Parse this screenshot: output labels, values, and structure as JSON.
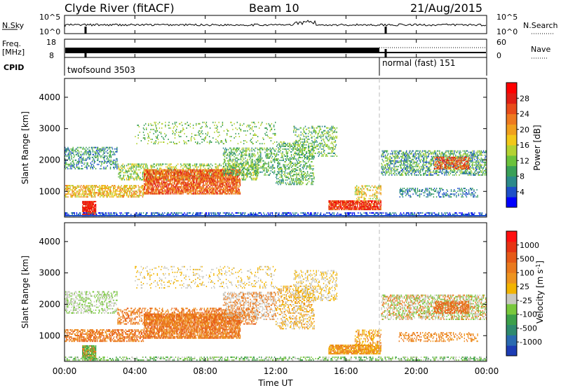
{
  "header": {
    "station": "Clyde River (fitACF)",
    "beam": "Beam 10",
    "date": "21/Aug/2015"
  },
  "top_panels": {
    "nsky_label": "N.Sky",
    "nsky_ticks": [
      "10^5",
      "10^0"
    ],
    "nsearch_label": "N.Search",
    "nsearch_ticks": [
      "10^5",
      "10^0"
    ],
    "freq_label_line1": "Freq.",
    "freq_label_line2": "[MHz]",
    "freq_ticks": [
      "18",
      "8"
    ],
    "nave_label": "Nave",
    "nave_ticks": [
      "60",
      "0"
    ],
    "cpid_label": "CPID",
    "cpid_segments": [
      {
        "name": "twofsound 3503",
        "start_hour": 0,
        "end_hour": 18.0
      },
      {
        "name": "normal (fast) 151",
        "start_hour": 18.0,
        "end_hour": 24
      }
    ]
  },
  "chart_data": [
    {
      "type": "heatmap",
      "panel": "power",
      "ylabel": "Slant Range [km]",
      "xlim": [
        0,
        24
      ],
      "ylim": [
        180,
        4600
      ],
      "yticks": [
        "1000",
        "2000",
        "3000",
        "4000"
      ],
      "colorbar": {
        "label": "Power [dB]",
        "ticks": [
          "28",
          "24",
          "20",
          "16",
          "12",
          "8",
          "4"
        ],
        "colors": [
          "#0000ff",
          "#1e50c8",
          "#2c8a8a",
          "#3aa058",
          "#6cc23c",
          "#b4d232",
          "#f2c81a",
          "#f0a01e",
          "#ee7a20",
          "#e84c1a",
          "#e01e14",
          "#ff0000"
        ]
      }
    },
    {
      "type": "heatmap",
      "panel": "velocity",
      "ylabel": "Slant Range [km]",
      "xlim": [
        0,
        24
      ],
      "ylim": [
        180,
        4600
      ],
      "yticks": [
        "1000",
        "2000",
        "3000",
        "4000"
      ],
      "colorbar": {
        "label": "Velocity [m s^-1]",
        "ticks": [
          "1000",
          "500",
          "100",
          "25",
          "-25",
          "-100",
          "-500",
          "-1000"
        ],
        "colors": [
          "#1c3cb4",
          "#2a6ab0",
          "#2e8a6e",
          "#3ca04a",
          "#78c83c",
          "#c8c8c0",
          "#f2b400",
          "#ee9420",
          "#ea7a1e",
          "#e65a18",
          "#e63414",
          "#ff1010"
        ]
      }
    }
  ],
  "xaxis": {
    "ticks": [
      "00:00",
      "04:00",
      "08:00",
      "12:00",
      "16:00",
      "20:00",
      "00:00"
    ],
    "label": "Time UT"
  }
}
